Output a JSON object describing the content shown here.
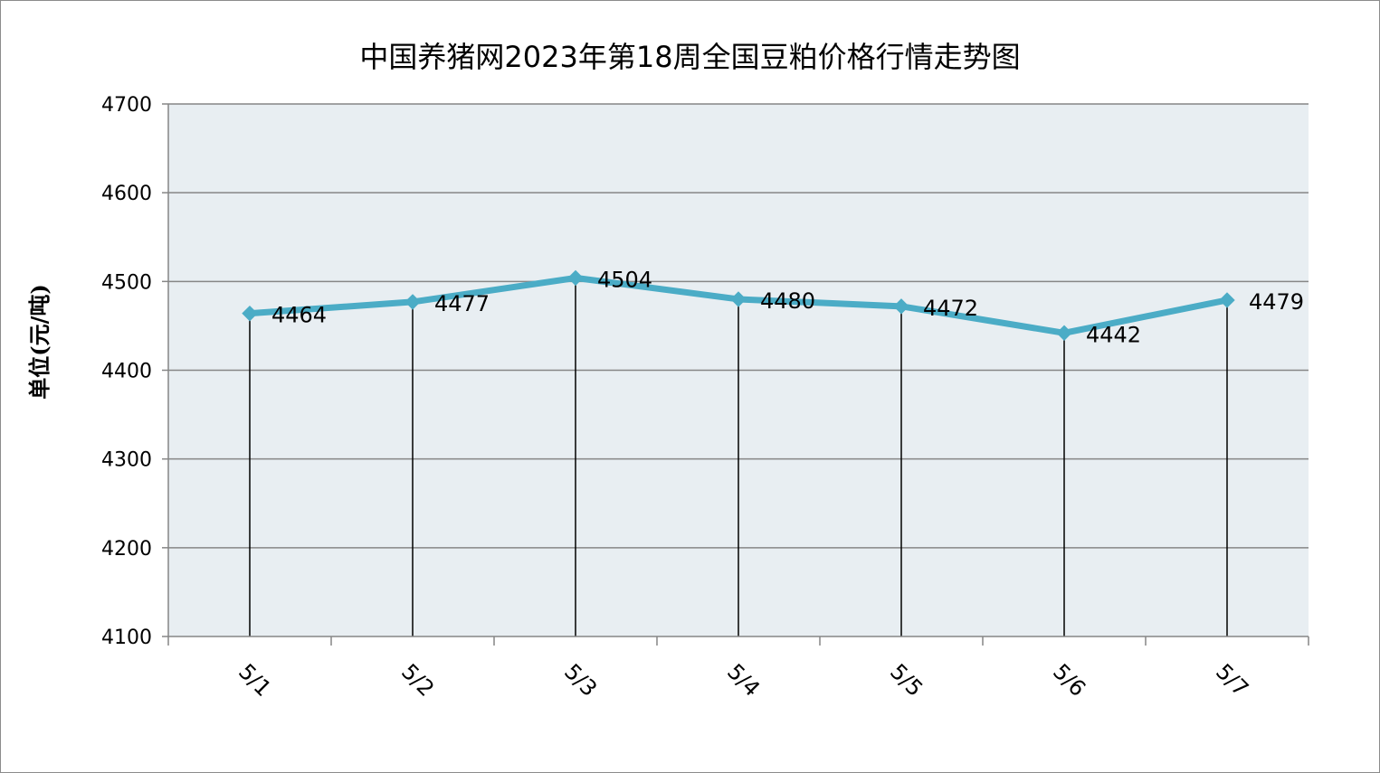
{
  "chart_data": {
    "type": "line",
    "title": "中国养猪网2023年第18周全国豆粕价格行情走势图",
    "xlabel": "",
    "ylabel": "单位(元/吨)",
    "categories": [
      "5/1",
      "5/2",
      "5/3",
      "5/4",
      "5/5",
      "5/6",
      "5/7"
    ],
    "series": [
      {
        "values": [
          4464,
          4477,
          4504,
          4480,
          4472,
          4442,
          4479
        ]
      }
    ],
    "data_labels": [
      "4464",
      "4477",
      "4504",
      "4480",
      "4472",
      "4442",
      "4479"
    ],
    "ylim": [
      4100,
      4700
    ],
    "yticks": [
      4100,
      4200,
      4300,
      4400,
      4500,
      4600,
      4700
    ],
    "ytick_labels": [
      "4100",
      "4200",
      "4300",
      "4400",
      "4500",
      "4600",
      "4700"
    ],
    "grid": true,
    "drop_lines": true,
    "legend": "none",
    "colors": {
      "line": "#4bacc6",
      "plot_background": "#e8eef2",
      "grid": "#868686",
      "drop_line": "#000000"
    }
  }
}
